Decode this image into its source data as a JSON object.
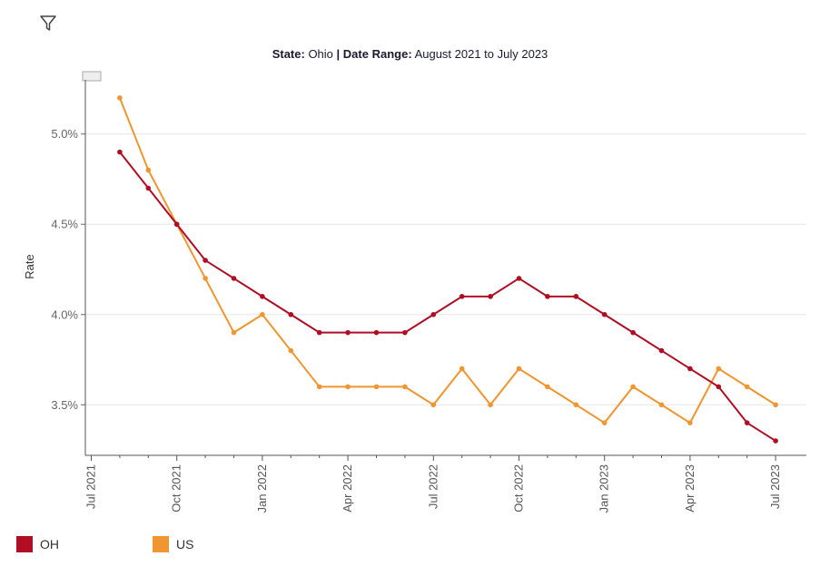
{
  "header": {
    "filter_icon": "filter-icon",
    "state_label": "State:",
    "state_value": "Ohio",
    "separator": "|",
    "range_label": "Date Range:",
    "range_value": "August 2021 to July 2023"
  },
  "chart_data": {
    "type": "line",
    "ylabel": "Rate",
    "ylim": [
      3.22,
      5.3
    ],
    "yticks": [
      {
        "value": 3.5,
        "label": "3.5%"
      },
      {
        "value": 4.0,
        "label": "4.0%"
      },
      {
        "value": 4.5,
        "label": "4.5%"
      },
      {
        "value": 5.0,
        "label": "5.0%"
      }
    ],
    "xticks": [
      "Jul 2021",
      "Oct 2021",
      "Jan 2022",
      "Apr 2022",
      "Jul 2022",
      "Oct 2022",
      "Jan 2023",
      "Apr 2023",
      "Jul 2023"
    ],
    "x": [
      "2021-08",
      "2021-09",
      "2021-10",
      "2021-11",
      "2021-12",
      "2022-01",
      "2022-02",
      "2022-03",
      "2022-04",
      "2022-05",
      "2022-06",
      "2022-07",
      "2022-08",
      "2022-09",
      "2022-10",
      "2022-11",
      "2022-12",
      "2023-01",
      "2023-02",
      "2023-03",
      "2023-04",
      "2023-05",
      "2023-06",
      "2023-07"
    ],
    "series": [
      {
        "name": "OH",
        "color": "#b00e23",
        "values": [
          4.9,
          4.7,
          4.5,
          4.3,
          4.2,
          4.1,
          4.0,
          3.9,
          3.9,
          3.9,
          3.9,
          4.0,
          4.1,
          4.1,
          4.2,
          4.1,
          4.1,
          4.0,
          3.9,
          3.8,
          3.7,
          3.6,
          3.4,
          3.3
        ]
      },
      {
        "name": "US",
        "color": "#f0952f",
        "values": [
          5.2,
          4.8,
          4.5,
          4.2,
          3.9,
          4.0,
          3.8,
          3.6,
          3.6,
          3.6,
          3.6,
          3.5,
          3.7,
          3.5,
          3.7,
          3.6,
          3.5,
          3.4,
          3.6,
          3.5,
          3.4,
          3.7,
          3.6,
          3.5
        ]
      }
    ],
    "grid": true,
    "legend": "bottom-left"
  }
}
